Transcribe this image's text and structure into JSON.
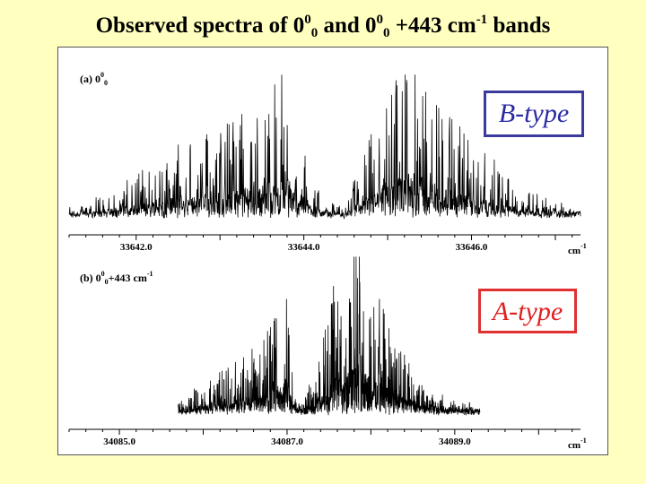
{
  "slide": {
    "title_main": "Observed spectra of 0",
    "title_sup1": "0",
    "title_sub1": "0",
    "title_mid": "  and 0",
    "title_sup2": "0",
    "title_sub2": "0",
    "title_mid2": " +443 cm",
    "title_sup3": "-1",
    "title_end": " bands"
  },
  "panels": {
    "a": {
      "prefix": "(a) 0",
      "sup": "0",
      "sub": "0",
      "rest": "",
      "rest_sup": ""
    },
    "b": {
      "prefix": "(b) 0",
      "sup": "0",
      "sub": "0",
      "rest": "+443 cm",
      "rest_sup": "-1"
    }
  },
  "annotations": {
    "a": "B-type",
    "b": "A-type"
  },
  "colors": {
    "background": "#ffffc0",
    "trace": "#000000",
    "btype": "#2a2aa6",
    "atype": "#e02020"
  },
  "chart_data": [
    {
      "type": "line",
      "title": "(a) 0^0_0",
      "xlabel": "cm-1",
      "xlim": [
        33641.2,
        33647.3
      ],
      "tick_labels": [
        "33642.0",
        "33644.0",
        "33646.0"
      ],
      "tick_values": [
        33642.0,
        33644.0,
        33646.0
      ],
      "annotation": "B-type",
      "envelope": {
        "x": [
          33641.2,
          33641.5,
          33642.0,
          33642.5,
          33643.0,
          33643.5,
          33643.8,
          33644.0,
          33644.2,
          33644.5,
          33644.7,
          33645.0,
          33645.3,
          33645.6,
          33646.0,
          33646.5,
          33647.0,
          33647.3
        ],
        "y": [
          0.05,
          0.1,
          0.25,
          0.4,
          0.55,
          0.7,
          0.85,
          0.45,
          0.1,
          0.05,
          0.35,
          0.75,
          1.0,
          0.7,
          0.45,
          0.2,
          0.1,
          0.05
        ]
      }
    },
    {
      "type": "line",
      "title": "(b) 0^0_0+443 cm-1",
      "xlabel": "cm-1",
      "xlim": [
        34084.4,
        34090.5
      ],
      "tick_labels": [
        "34085.0",
        "34087.0",
        "34089.0"
      ],
      "tick_values": [
        34085.0,
        34087.0,
        34089.0
      ],
      "annotation": "A-type",
      "envelope": {
        "x": [
          34085.7,
          34086.0,
          34086.3,
          34086.5,
          34086.7,
          34086.9,
          34087.0,
          34087.1,
          34087.2,
          34087.4,
          34087.6,
          34087.8,
          34088.0,
          34088.3,
          34088.6,
          34089.0,
          34089.3
        ],
        "y": [
          0.05,
          0.15,
          0.25,
          0.35,
          0.4,
          0.55,
          0.6,
          0.05,
          0.05,
          0.35,
          0.8,
          1.0,
          0.8,
          0.4,
          0.15,
          0.05,
          0.03
        ]
      }
    }
  ]
}
